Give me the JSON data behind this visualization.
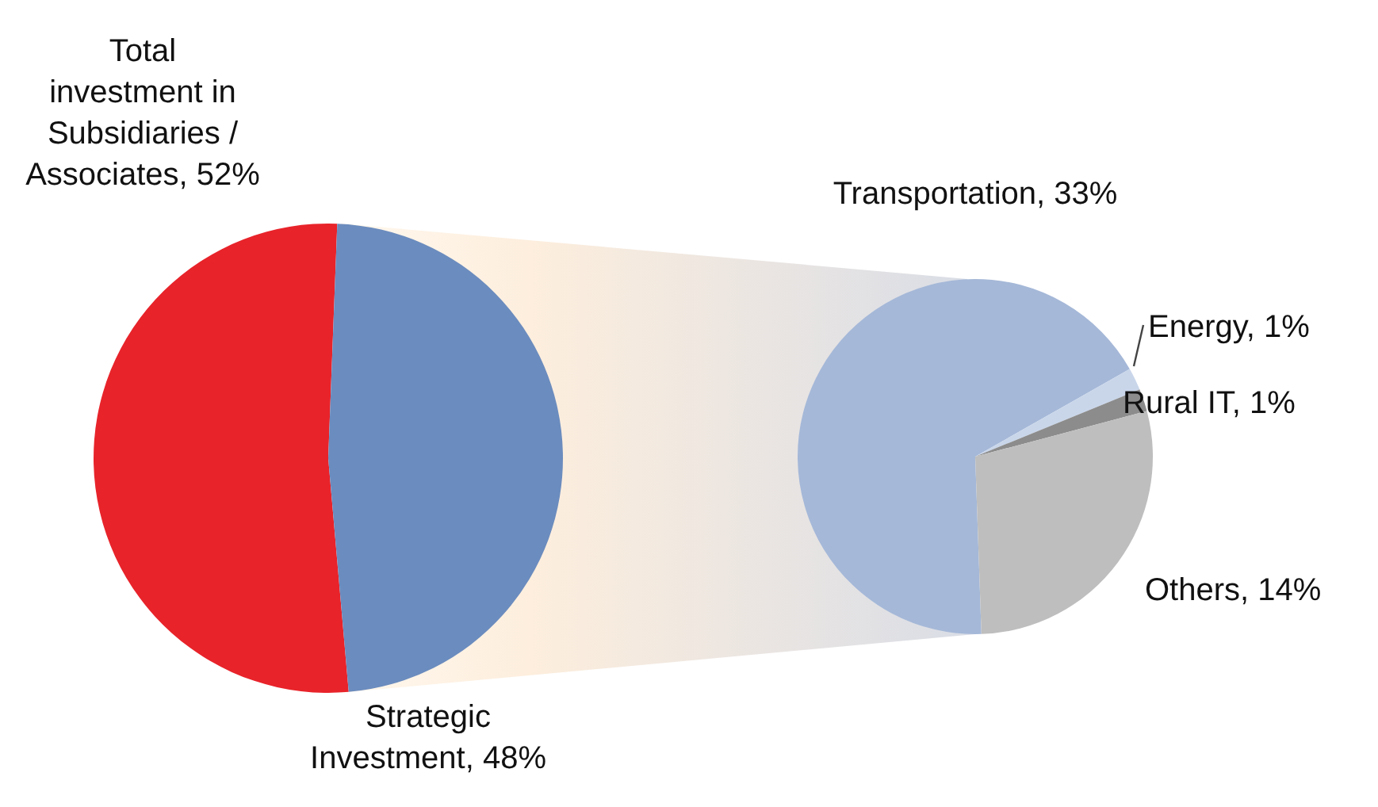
{
  "chart_data": [
    {
      "type": "pie",
      "categories": [
        "Total investment in Subsidiaries / Associates",
        "Strategic Investment"
      ],
      "values": [
        52,
        48
      ],
      "colors": [
        "#e8232a",
        "#6b8cbe"
      ],
      "value_labels": [
        "52%",
        "48%"
      ]
    },
    {
      "type": "pie",
      "categories": [
        "Transportation",
        "Energy",
        "Rural IT",
        "Others"
      ],
      "values": [
        33,
        1,
        1,
        14
      ],
      "colors": [
        "#a5b8d8",
        "#c9d6ea",
        "#8c8c8c",
        "#bebebe"
      ],
      "value_labels": [
        "33%",
        "1%",
        "1%",
        "14%"
      ]
    }
  ]
}
